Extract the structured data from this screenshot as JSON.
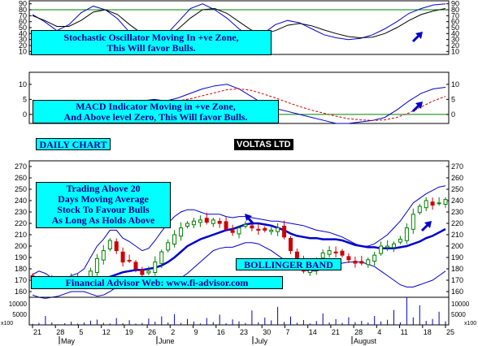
{
  "chart_data": [
    {
      "panel": "stochastic",
      "type": "line",
      "y_ticks": [
        "90",
        "80",
        "70",
        "60",
        "50",
        "40",
        "30",
        "20",
        "10"
      ],
      "ylim": [
        5,
        95
      ],
      "series": [
        {
          "values": [
            72,
            60,
            45,
            55,
            75,
            86,
            80,
            65,
            42,
            30,
            28,
            38,
            60,
            82,
            90,
            80,
            66,
            48,
            34,
            40,
            55,
            62,
            58,
            48,
            38,
            33,
            30,
            32,
            38,
            48,
            60,
            74,
            82,
            88,
            90
          ]
        },
        {
          "values": [
            70,
            62,
            52,
            52,
            62,
            76,
            80,
            72,
            55,
            40,
            32,
            34,
            48,
            66,
            80,
            82,
            74,
            60,
            46,
            40,
            45,
            54,
            57,
            53,
            46,
            40,
            35,
            33,
            34,
            40,
            50,
            62,
            72,
            78,
            82
          ]
        }
      ],
      "reference_level": 80,
      "annotation_lines": [
        "Stochastic Oscillator Moving In +ve Zone,",
        "This Will favor Bulls."
      ]
    },
    {
      "panel": "macd",
      "type": "line",
      "y_ticks": [
        "10",
        "5",
        "0"
      ],
      "ylim": [
        -3,
        14
      ],
      "series": [
        {
          "values": [
            3,
            2,
            0.5,
            -1.5,
            -2.5,
            -2,
            0,
            2,
            3.5,
            4.5,
            5,
            4.5,
            5.5,
            7,
            8.5,
            9.5,
            10,
            8.5,
            6,
            3.5,
            2,
            1,
            0,
            -1,
            -2,
            -3,
            -3,
            -2.5,
            -2,
            -1,
            1.5,
            4.5,
            7,
            8.5,
            9
          ]
        },
        {
          "values": [
            4,
            3.5,
            2.5,
            1,
            -0.5,
            -1.5,
            -1,
            0,
            1.5,
            2.8,
            3.8,
            4.2,
            4.5,
            5.2,
            6.2,
            7.2,
            8.2,
            8.5,
            8,
            6.8,
            5.5,
            4,
            2.6,
            1.4,
            0.4,
            -0.6,
            -1.4,
            -1.8,
            -2,
            -1.8,
            -1,
            0.5,
            2.5,
            4.5,
            6
          ]
        }
      ],
      "reference_level": 0,
      "annotation_lines": [
        "MACD Indicator Moving in +ve Zone,",
        "And Above level Zero, This Will favor Bulls."
      ]
    },
    {
      "panel": "price",
      "type": "candlestick",
      "title": "VOLTAS LTD",
      "label": "DAILY CHART",
      "y_ticks": [
        "270",
        "260",
        "250",
        "240",
        "230",
        "220",
        "210",
        "200",
        "190",
        "180",
        "170",
        "160"
      ],
      "ylim": [
        155,
        275
      ],
      "x_tick_labels": [
        "21",
        "28",
        "5",
        "12",
        "19",
        "26",
        "2",
        "9",
        "16",
        "23",
        "30",
        "7",
        "14",
        "21",
        "28",
        "4",
        "11",
        "18",
        "25"
      ],
      "months": [
        "May",
        "June",
        "July",
        "August"
      ],
      "close": [
        172,
        170,
        168,
        167,
        168,
        170,
        172,
        168,
        170,
        178,
        189,
        196,
        205,
        196,
        186,
        187,
        180,
        175,
        178,
        186,
        195,
        203,
        210,
        216,
        220,
        222,
        223,
        221,
        223,
        220,
        215,
        212,
        216,
        219,
        216,
        214,
        214,
        214,
        216,
        208,
        196,
        186,
        178,
        180,
        188,
        194,
        196,
        194,
        192,
        188,
        185,
        185,
        188,
        192,
        200,
        200,
        202,
        206,
        216,
        228,
        235,
        240,
        236,
        238,
        241
      ],
      "ma20": [
        166,
        165,
        164,
        163,
        163,
        164,
        165,
        165,
        166,
        167,
        168,
        170,
        173,
        175,
        177,
        178,
        179,
        179,
        180,
        181,
        183,
        186,
        190,
        195,
        200,
        203,
        206,
        208,
        210,
        212,
        214,
        215,
        217,
        219,
        220,
        220,
        219,
        218,
        216,
        214,
        211,
        209,
        208,
        207,
        207,
        206,
        206,
        206,
        205,
        203,
        201,
        200,
        199,
        199,
        198,
        198,
        198,
        199,
        200,
        202,
        204,
        207,
        209,
        212,
        215
      ],
      "upper_band": [
        175,
        178,
        176,
        172,
        171,
        171,
        174,
        176,
        180,
        190,
        200,
        206,
        214,
        214,
        207,
        204,
        200,
        196,
        198,
        205,
        213,
        220,
        226,
        230,
        232,
        232,
        230,
        228,
        228,
        228,
        226,
        225,
        226,
        226,
        225,
        224,
        223,
        222,
        222,
        221,
        220,
        219,
        218,
        216,
        214,
        213,
        212,
        210,
        208,
        205,
        202,
        200,
        200,
        202,
        206,
        210,
        216,
        222,
        230,
        238,
        242,
        246,
        249,
        252,
        253
      ],
      "lower_band": [
        157,
        155,
        154,
        155,
        156,
        158,
        160,
        160,
        160,
        158,
        156,
        157,
        160,
        164,
        169,
        172,
        172,
        171,
        170,
        168,
        166,
        166,
        168,
        172,
        176,
        181,
        186,
        191,
        196,
        198,
        199,
        199,
        201,
        203,
        203,
        202,
        199,
        196,
        192,
        188,
        184,
        180,
        179,
        178,
        178,
        180,
        181,
        183,
        185,
        186,
        186,
        186,
        184,
        182,
        178,
        174,
        170,
        166,
        164,
        164,
        166,
        168,
        170,
        174,
        178
      ],
      "annotation_lines": [
        "Trading Above 20",
        "Days Moving Average",
        "Stock To Favour Bulls",
        "As Long As Holds Above"
      ],
      "band_label": "BOLLINGER BAND",
      "footer_text": "Financial Advisor Web: www.fi-advisor.com"
    },
    {
      "panel": "volume",
      "type": "bar",
      "y_ticks": [
        "10000",
        "5000"
      ],
      "y_unit": "x100",
      "ylim": [
        0,
        13000
      ],
      "values": [
        500,
        900,
        4200,
        1200,
        300,
        800,
        1500,
        600,
        1100,
        2000,
        2500,
        1000,
        700,
        3200,
        800,
        2200,
        600,
        900,
        3000,
        1500,
        4000,
        1100,
        5000,
        900,
        2800,
        1600,
        700,
        3200,
        1300,
        4800,
        800,
        2600,
        1700,
        900,
        6800,
        1200,
        3400,
        2100,
        8500,
        1400,
        3900,
        1000,
        2300,
        700,
        1800,
        5400,
        1100,
        2700,
        900,
        3600,
        1300,
        1900,
        1100,
        4200,
        1600,
        2400,
        7000,
        1200,
        13000,
        3500,
        9200,
        1900,
        2800,
        6200,
        1700
      ]
    }
  ],
  "colors": {
    "band": "#0000cc",
    "ma": "#0000cc",
    "up": "#008000",
    "down": "#cc0000",
    "ref": "#008000",
    "signal": "#cc0000",
    "arrow": "#0000cc"
  }
}
